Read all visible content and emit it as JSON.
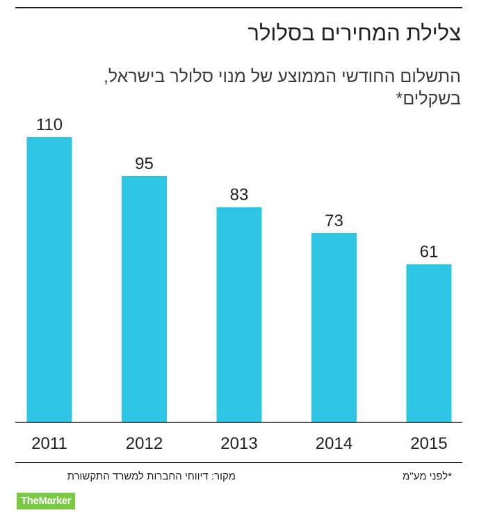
{
  "header": {
    "title": "צלילת המחירים בסלולר",
    "subtitle": "התשלום החודשי הממוצע של מנוי סלולר בישראל, בשקלים*"
  },
  "footer": {
    "source": "מקור: דיווחי החברות למשרד התקשורת",
    "footnote": "*לפני מע\"מ",
    "logo_text": "TheMarker",
    "logo_color": "#7ac943"
  },
  "colors": {
    "bar": "#2ec4e4",
    "text": "#231f20"
  },
  "chart_data": {
    "type": "bar",
    "title": "צלילת המחירים בסלולר",
    "subtitle": "התשלום החודשי הממוצע של מנוי סלולר בישראל, בשקלים*",
    "categories": [
      "2011",
      "2012",
      "2013",
      "2014",
      "2015"
    ],
    "values": [
      110,
      95,
      83,
      73,
      61
    ],
    "data_labels": [
      "110",
      "95",
      "83",
      "73",
      "61"
    ],
    "xlabel": "",
    "ylabel": "",
    "ylim": [
      0,
      110
    ],
    "grid": false,
    "legend": "none"
  }
}
